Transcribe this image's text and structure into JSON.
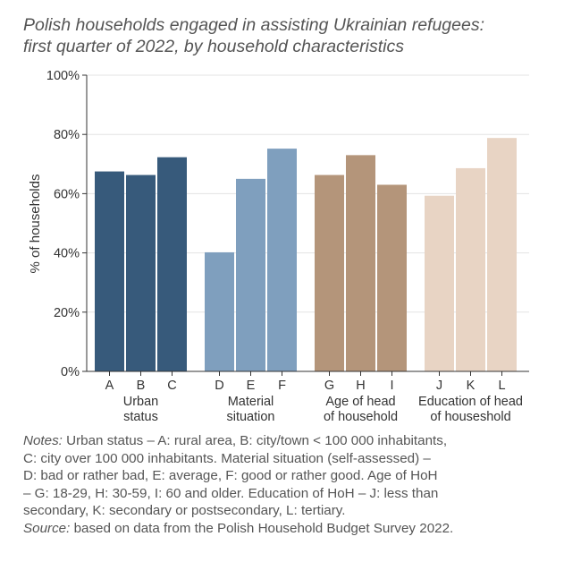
{
  "chart_data": {
    "type": "bar",
    "title_lines": [
      "Polish households engaged in assisting Ukrainian refugees:",
      "first quarter of 2022, by household characteristics"
    ],
    "ylabel": "% of households",
    "ylim": [
      0,
      100
    ],
    "yticks": [
      "0%",
      "20%",
      "40%",
      "60%",
      "80%",
      "100%"
    ],
    "grid": true,
    "groups": [
      {
        "label_lines": [
          "Urban",
          "status"
        ],
        "color": "#375a7b",
        "bars": [
          {
            "label": "A",
            "value": 67.5
          },
          {
            "label": "B",
            "value": 66.3
          },
          {
            "label": "C",
            "value": 72.3
          }
        ]
      },
      {
        "label_lines": [
          "Material",
          "situation"
        ],
        "color": "#7f9fbe",
        "bars": [
          {
            "label": "D",
            "value": 40.2
          },
          {
            "label": "E",
            "value": 65.0
          },
          {
            "label": "F",
            "value": 75.2
          }
        ]
      },
      {
        "label_lines": [
          "Age of head",
          "of household"
        ],
        "color": "#b4957a",
        "bars": [
          {
            "label": "G",
            "value": 66.3
          },
          {
            "label": "H",
            "value": 73.0
          },
          {
            "label": "I",
            "value": 63.0
          }
        ]
      },
      {
        "label_lines": [
          "Education of head",
          "of houseshold"
        ],
        "color": "#e8d4c4",
        "bars": [
          {
            "label": "J",
            "value": 59.3
          },
          {
            "label": "K",
            "value": 68.6
          },
          {
            "label": "L",
            "value": 78.8
          }
        ]
      }
    ]
  },
  "notes": {
    "notes_label": "Notes:",
    "line1": " Urban status – A: rural area, B: city/town < 100 000 inhabitants,",
    "line2": "C: city over 100 000 inhabitants. Material situation (self-assessed) –",
    "line3": "D: bad or rather bad, E: average, F: good or rather good. Age of HoH",
    "line4": "– G: 18-29, H: 30-59, I: 60 and older. Education of HoH – J: less than",
    "line5": "secondary, K: secondary or postsecondary, L: tertiary.",
    "source_label": "Source:",
    "source_text": " based on data from the Polish Household Budget Survey 2022."
  }
}
